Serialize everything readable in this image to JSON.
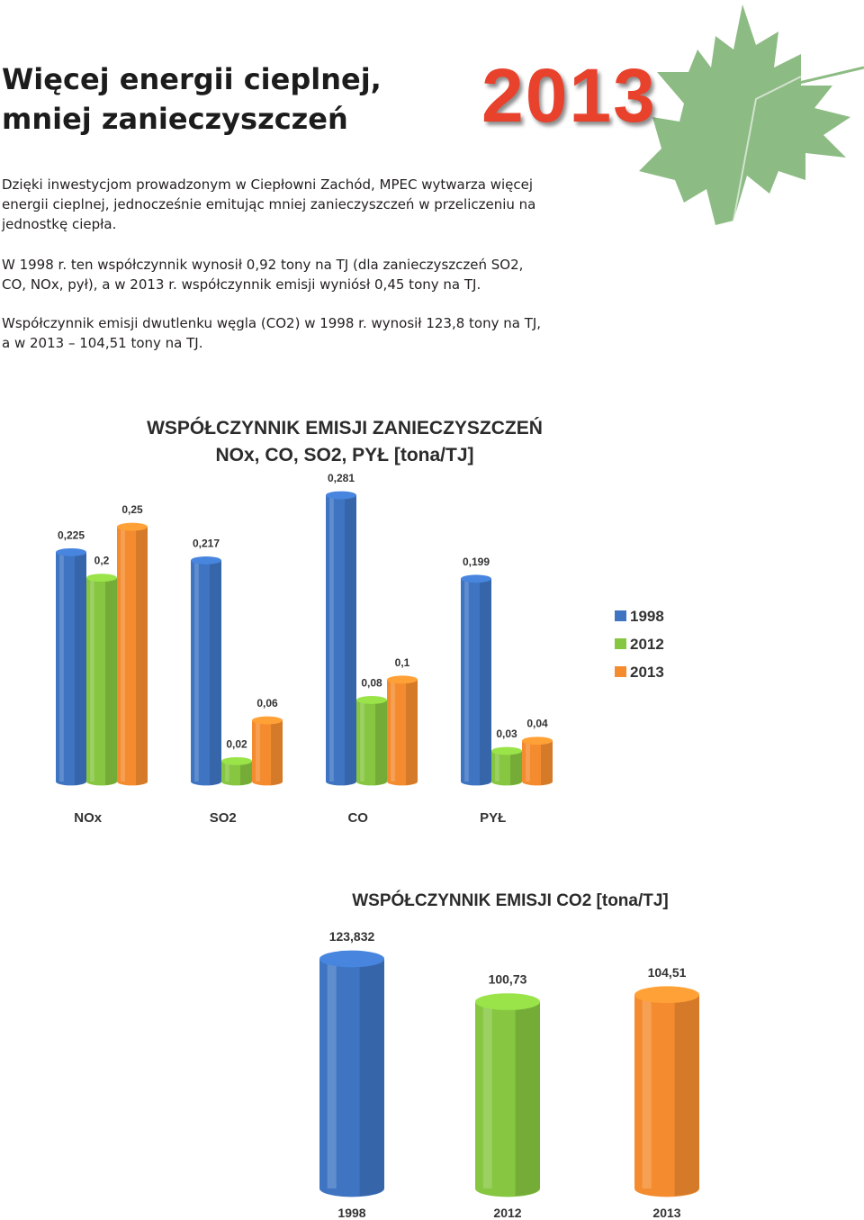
{
  "header": {
    "title_line1": "Więcej energii cieplnej,",
    "title_line2": "mniej zanieczyszczeń",
    "year_badge": "2013",
    "leaf_color": "#8dbb84",
    "year_color": "#e8412c"
  },
  "paragraphs": {
    "p1_line1": "Dzięki inwestycjom prowadzonym w Ciepłowni Zachód, MPEC wytwarza więcej",
    "p1_line2": "energii cieplnej, jednocześnie emitując mniej zanieczyszczeń w przeliczeniu na",
    "p1_line3": "jednostkę ciepła.",
    "p2_line1": "W 1998 r. ten współczynnik wynosił 0,92 tony na TJ (dla zanieczyszczeń SO2,",
    "p2_line2": "CO, NOx, pył), a w 2013 r. współczynnik emisji wyniósł 0,45 tony na TJ.",
    "p3_line1": "Współczynnik emisji dwutlenku węgla (CO2) w 1998 r. wynosił 123,8 tony na TJ,",
    "p3_line2": "a w 2013 – 104,51 tony na TJ."
  },
  "chart_data": [
    {
      "type": "bar",
      "title_line1": "WSPÓŁCZYNNIK EMISJI ZANIECZYSZCZEŃ",
      "title_line2": "NOx, CO, SO2, PYŁ [tona/TJ]",
      "categories": [
        "NOx",
        "SO2",
        "CO",
        "PYŁ"
      ],
      "series": [
        {
          "name": "1998",
          "color": "#3e74c2",
          "values": [
            0.225,
            0.217,
            0.281,
            0.199
          ],
          "labels": [
            "0,225",
            "0,217",
            "0,281",
            "0,199"
          ]
        },
        {
          "name": "2012",
          "color": "#86c640",
          "values": [
            0.2,
            0.02,
            0.08,
            0.03
          ],
          "labels": [
            "0,2",
            "0,02",
            "0,08",
            "0,03"
          ]
        },
        {
          "name": "2013",
          "color": "#f48c2f",
          "values": [
            0.25,
            0.06,
            0.1,
            0.04
          ],
          "labels": [
            "0,25",
            "0,06",
            "0,1",
            "0,04"
          ]
        }
      ],
      "ylim": [
        0,
        0.281
      ],
      "legend": "right",
      "grid": false
    },
    {
      "type": "bar",
      "title": "WSPÓŁCZYNNIK EMISJI CO2 [tona/TJ]",
      "categories": [
        "1998",
        "2012",
        "2013"
      ],
      "values": [
        123.832,
        100.73,
        104.51
      ],
      "labels": [
        "123,832",
        "100,73",
        "104,51"
      ],
      "colors": [
        "#3e74c2",
        "#86c640",
        "#f48c2f"
      ],
      "ylim": [
        0,
        123.832
      ],
      "grid": false
    }
  ]
}
